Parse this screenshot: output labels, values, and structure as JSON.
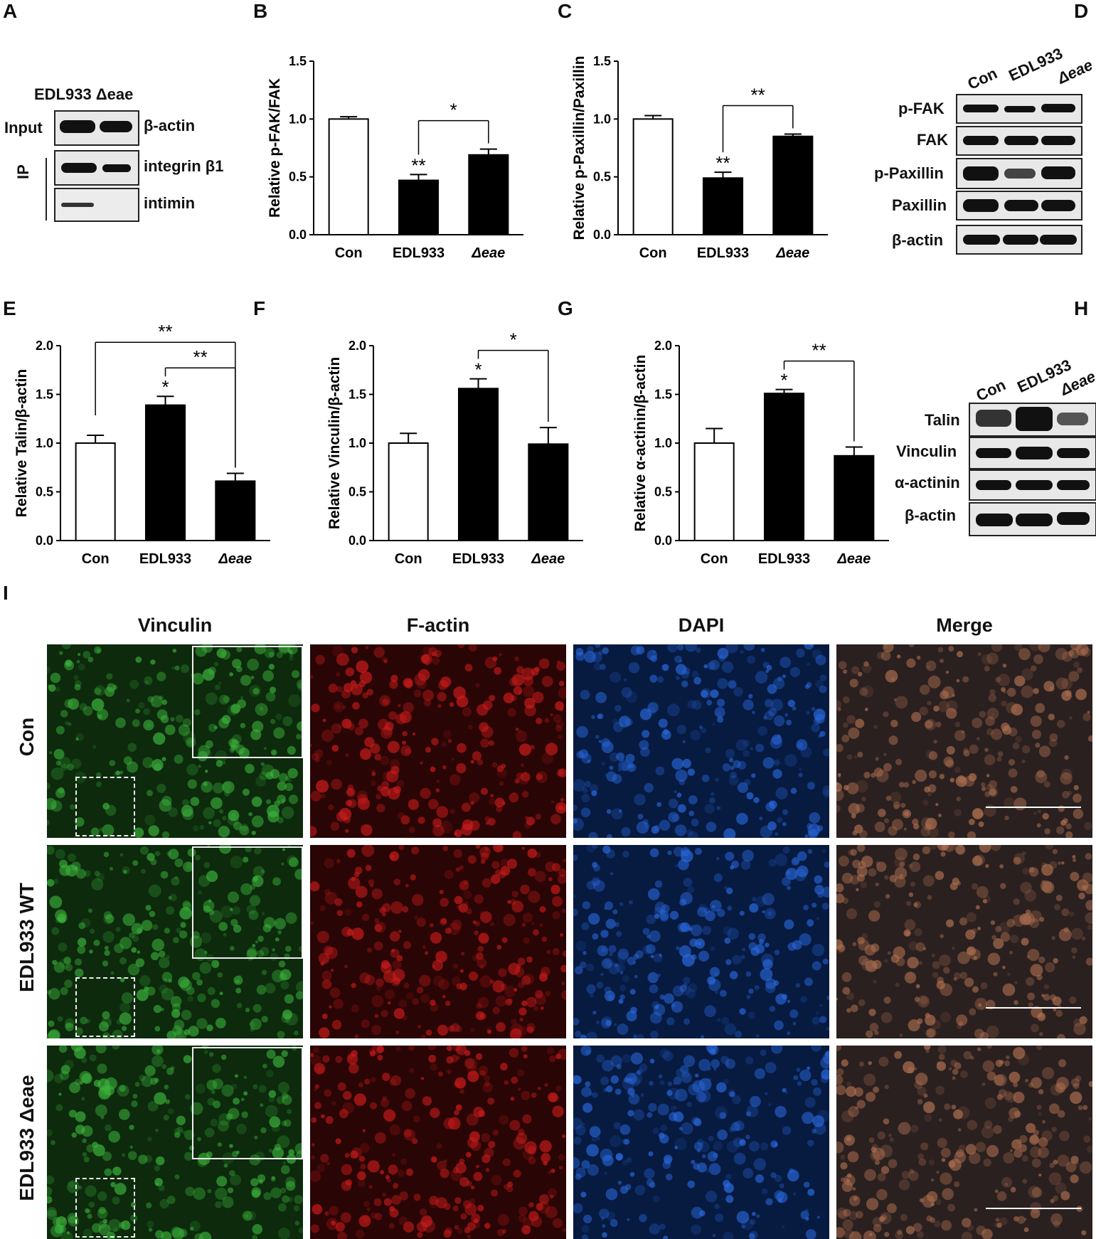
{
  "panels": {
    "A": {
      "letter": "A",
      "lanes_header": "EDL933 Δeae",
      "row_labels": {
        "input": "Input",
        "ip": "IP"
      },
      "band_labels": [
        "β-actin",
        "integrin β1",
        "intimin"
      ]
    },
    "D": {
      "letter": "D",
      "lanes": [
        "Con",
        "EDL933",
        "Δeae"
      ],
      "band_labels": [
        "p-FAK",
        "FAK",
        "p-Paxillin",
        "Paxillin",
        "β-actin"
      ]
    },
    "H": {
      "letter": "H",
      "lanes": [
        "Con",
        "EDL933",
        "Δeae"
      ],
      "band_labels": [
        "Talin",
        "Vinculin",
        "α-actinin",
        "β-actin"
      ]
    },
    "I": {
      "letter": "I",
      "columns": [
        "Vinculin",
        "F-actin",
        "DAPI",
        "Merge"
      ],
      "rows": [
        "Con",
        "EDL933 WT",
        "EDL933 Δeae"
      ]
    }
  },
  "colors": {
    "bar_con": "#ffffff",
    "bar_treated": "#000000",
    "vinculin": "#1f8a1f",
    "factin": "#c01010",
    "dapi": "#1040c0",
    "merge": "#7a5040"
  },
  "chart_data": [
    {
      "letter": "B",
      "type": "bar",
      "categories": [
        "Con",
        "EDL933",
        "Δeae"
      ],
      "values": [
        1.0,
        0.47,
        0.69
      ],
      "errors": [
        0.02,
        0.05,
        0.05
      ],
      "ylabel": "Relative p-FAK/FAK",
      "ylim": [
        0,
        1.5
      ],
      "yticks": [
        "0.0",
        "0.5",
        "1.0",
        "1.5"
      ],
      "bar_marks": [
        "",
        "**",
        ""
      ],
      "brackets": [
        {
          "from": 1,
          "to": 2,
          "label": "*"
        }
      ]
    },
    {
      "letter": "C",
      "type": "bar",
      "categories": [
        "Con",
        "EDL933",
        "Δeae"
      ],
      "values": [
        1.0,
        0.49,
        0.85
      ],
      "errors": [
        0.03,
        0.05,
        0.02
      ],
      "ylabel": "Relative p-Paxillin/Paxillin",
      "ylim": [
        0,
        1.5
      ],
      "yticks": [
        "0.0",
        "0.5",
        "1.0",
        "1.5"
      ],
      "bar_marks": [
        "",
        "**",
        ""
      ],
      "brackets": [
        {
          "from": 1,
          "to": 2,
          "label": "**"
        }
      ]
    },
    {
      "letter": "E",
      "type": "bar",
      "categories": [
        "Con",
        "EDL933",
        "Δeae"
      ],
      "values": [
        1.0,
        1.39,
        0.61
      ],
      "errors": [
        0.08,
        0.09,
        0.08
      ],
      "ylabel": "Relative Talin/β-actin",
      "ylim": [
        0,
        2.0
      ],
      "yticks": [
        "0.0",
        "0.5",
        "1.0",
        "1.5",
        "2.0"
      ],
      "bar_marks": [
        "",
        "*",
        ""
      ],
      "brackets": [
        {
          "from": 0,
          "to": 2,
          "label": "**"
        },
        {
          "from": 1,
          "to": 2,
          "label": "**"
        }
      ]
    },
    {
      "letter": "F",
      "type": "bar",
      "categories": [
        "Con",
        "EDL933",
        "Δeae"
      ],
      "values": [
        1.0,
        1.56,
        0.99
      ],
      "errors": [
        0.1,
        0.1,
        0.17
      ],
      "ylabel": "Relative Vinculin/β-actin",
      "ylim": [
        0,
        2.0
      ],
      "yticks": [
        "0.0",
        "0.5",
        "1.0",
        "1.5",
        "2.0"
      ],
      "bar_marks": [
        "",
        "*",
        ""
      ],
      "brackets": [
        {
          "from": 1,
          "to": 2,
          "label": "*"
        }
      ]
    },
    {
      "letter": "G",
      "type": "bar",
      "categories": [
        "Con",
        "EDL933",
        "Δeae"
      ],
      "values": [
        1.0,
        1.51,
        0.87
      ],
      "errors": [
        0.15,
        0.04,
        0.09
      ],
      "ylabel": "Relative α-actinin/β-actin",
      "ylim": [
        0,
        2.0
      ],
      "yticks": [
        "0.0",
        "0.5",
        "1.0",
        "1.5",
        "2.0"
      ],
      "bar_marks": [
        "",
        "*",
        ""
      ],
      "brackets": [
        {
          "from": 1,
          "to": 2,
          "label": "**"
        }
      ]
    }
  ]
}
